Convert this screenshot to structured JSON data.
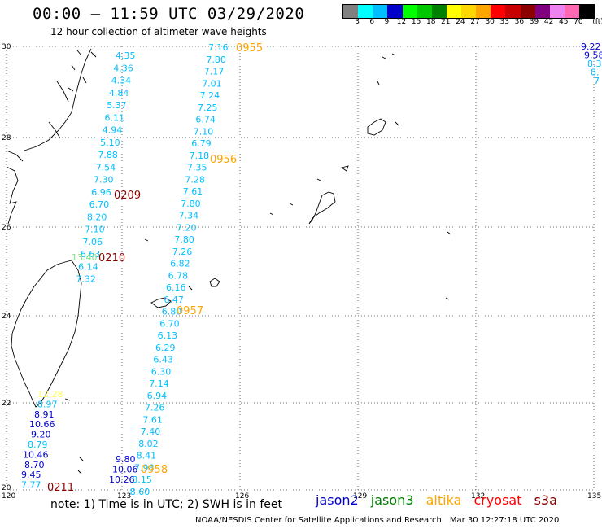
{
  "header": {
    "title": "00:00 – 11:59 UTC 03/29/2020",
    "subtitle": "12 hour collection of altimeter wave heights"
  },
  "colorbar": {
    "colors": [
      "#808080",
      "#00ffff",
      "#00bfff",
      "#0000cd",
      "#00ff00",
      "#00c800",
      "#008000",
      "#ffff00",
      "#ffd700",
      "#ffa500",
      "#ff0000",
      "#c80000",
      "#8b0000",
      "#800080",
      "#ee82ee",
      "#ff69b4",
      "#000000"
    ],
    "labels": [
      "3",
      "6",
      "9",
      "12",
      "15",
      "18",
      "21",
      "24",
      "27",
      "30",
      "33",
      "36",
      "39",
      "42",
      "45",
      "70"
    ],
    "unit": "(ft)"
  },
  "map": {
    "lon_labels": [
      "120",
      "123",
      "126",
      "129",
      "132",
      "135"
    ],
    "lat_labels": [
      "30",
      "28",
      "26",
      "24",
      "22",
      "20"
    ]
  },
  "tracks": {
    "t1": {
      "color": "#00bfff",
      "values": [
        "4.35",
        "4.36",
        "4.34",
        "4.84",
        "5.37",
        "6.11",
        "4.94",
        "5.10",
        "7.88",
        "7.54",
        "7.30",
        "6.96",
        "6.70",
        "8.20",
        "7.10",
        "7.06",
        "6.63",
        "6.14",
        "7.32"
      ]
    },
    "t1_extra": {
      "value": "13.40",
      "color": "#7ee37e"
    },
    "t2": {
      "color": "#00bfff",
      "values": [
        "7.16",
        "7.80",
        "7.17",
        "7.01",
        "7.24",
        "7.25",
        "6.74",
        "7.10",
        "6.79",
        "7.18",
        "7.35",
        "7.28",
        "7.61",
        "7.80",
        "7.34",
        "7.20",
        "7.80",
        "7.26",
        "6.82",
        "6.78",
        "6.16",
        "6.47",
        "6.80",
        "6.70",
        "6.13",
        "6.29",
        "6.43",
        "6.30",
        "7.14",
        "6.94",
        "7.26",
        "7.61",
        "7.40",
        "8.02",
        "8.41",
        "7.98",
        "8.15",
        "8.60"
      ]
    },
    "t3_low": {
      "values": [
        "12.28",
        "8.97",
        "8.91",
        "10.66",
        "9.20",
        "8.79",
        "10.46",
        "8.70",
        "9.45",
        "7.77"
      ]
    },
    "t2_low": {
      "values": [
        "9.80",
        "10.06",
        "10.26"
      ]
    },
    "right_edge": {
      "values": [
        "9.22",
        "9.58",
        "8.3",
        "8.",
        "7"
      ]
    }
  },
  "times": {
    "t0955": "0955",
    "t0956": "0956",
    "t0957": "0957",
    "t0958": "0958",
    "t0209": "0209",
    "t0210": "0210",
    "t0211": "0211"
  },
  "footer": {
    "note": "note: 1) Time is in UTC; 2) SWH is in feet",
    "satellites": [
      {
        "name": "jason2",
        "color": "#0000cd"
      },
      {
        "name": "jason3",
        "color": "#008000"
      },
      {
        "name": "altika",
        "color": "#ffa500"
      },
      {
        "name": "cryosat",
        "color": "#ff0000"
      },
      {
        "name": "s3a",
        "color": "#8b0000"
      }
    ],
    "credit": "NOAA/NESDIS Center for Satellite Applications and Research",
    "timestamp": "Mar 30 12:27:18 UTC 2020"
  }
}
